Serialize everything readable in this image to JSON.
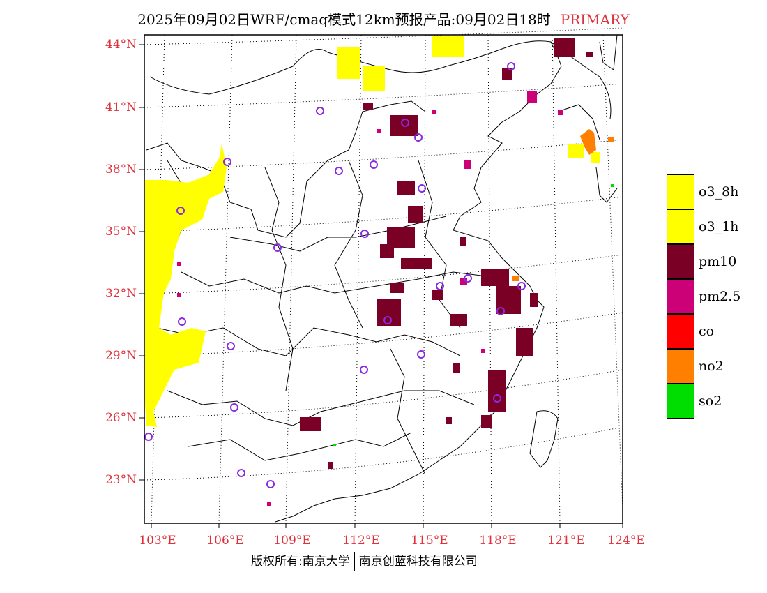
{
  "header": {
    "title": "2025年09月02日WRF/cmaq模式12km预报产品:09月02日18时",
    "primary": "PRIMARY"
  },
  "map": {
    "lat_labels": [
      "44°N",
      "41°N",
      "38°N",
      "35°N",
      "32°N",
      "29°N",
      "26°N",
      "23°N"
    ],
    "lon_labels": [
      "103°E",
      "106°E",
      "109°E",
      "112°E",
      "115°E",
      "118°E",
      "121°E",
      "124°E"
    ],
    "pollutant_colors": {
      "o3_8h": "#ffff00",
      "o3_1h": "#ffff00",
      "pm10": "#7a0026",
      "pm2.5": "#cc0077",
      "co": "#ff0000",
      "no2": "#ff7f00",
      "so2": "#00dd00"
    }
  },
  "legend": {
    "items": [
      {
        "label": "o3_8h",
        "color": "#ffff00"
      },
      {
        "label": "o3_1h",
        "color": "#ffff00"
      },
      {
        "label": "pm10",
        "color": "#7a0026"
      },
      {
        "label": "pm2.5",
        "color": "#cc0077"
      },
      {
        "label": "co",
        "color": "#ff0000"
      },
      {
        "label": "no2",
        "color": "#ff7f00"
      },
      {
        "label": "so2",
        "color": "#00dd00"
      }
    ]
  },
  "footer": {
    "left": "版权所有:南京大学",
    "right": "南京创蓝科技有限公司"
  }
}
